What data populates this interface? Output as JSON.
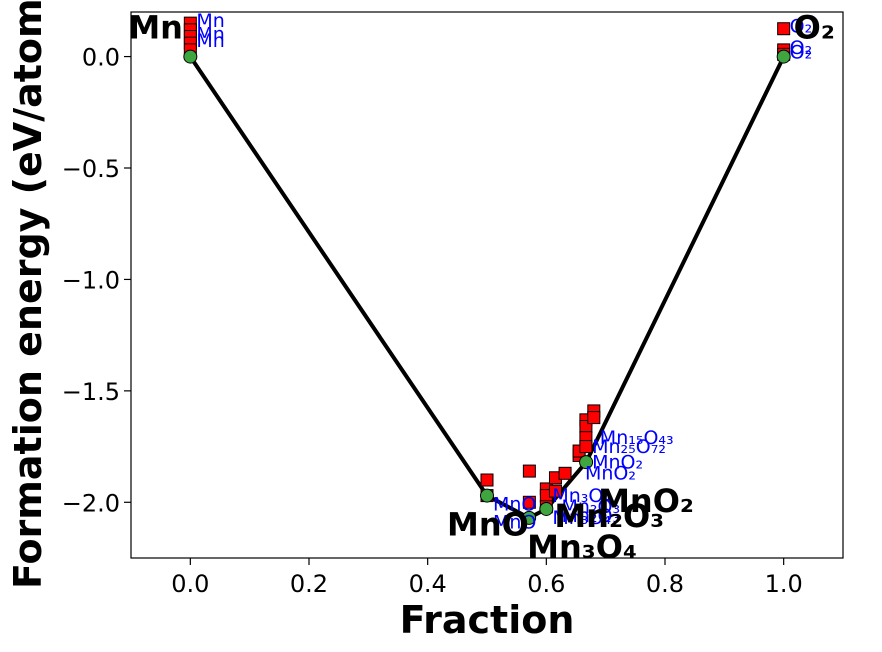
{
  "chart_data": {
    "type": "scatter",
    "xlabel": "Fraction",
    "ylabel": "Formation energy (eV/atom)",
    "xlim": [
      -0.1,
      1.1
    ],
    "ylim": [
      -2.25,
      0.2
    ],
    "xticks": [
      {
        "value": 0.0,
        "label": "0.0"
      },
      {
        "value": 0.2,
        "label": "0.2"
      },
      {
        "value": 0.4,
        "label": "0.4"
      },
      {
        "value": 0.6,
        "label": "0.6"
      },
      {
        "value": 0.8,
        "label": "0.8"
      },
      {
        "value": 1.0,
        "label": "1.0"
      }
    ],
    "yticks": [
      {
        "value": 0.0,
        "label": "0.0"
      },
      {
        "value": -0.5,
        "label": "−0.5"
      },
      {
        "value": -1.0,
        "label": "−1.0"
      },
      {
        "value": -1.5,
        "label": "−1.5"
      },
      {
        "value": -2.0,
        "label": "−2.0"
      }
    ],
    "grid": false,
    "hull": {
      "color": "#000000",
      "points": [
        {
          "x": 0.0,
          "y": 0.0
        },
        {
          "x": 0.5,
          "y": -1.97
        },
        {
          "x": 0.571,
          "y": -2.07
        },
        {
          "x": 0.6,
          "y": -2.03
        },
        {
          "x": 0.667,
          "y": -1.82
        },
        {
          "x": 1.0,
          "y": 0.0
        }
      ]
    },
    "stable": {
      "color": "#3fa63f",
      "points": [
        {
          "x": 0.0,
          "y": 0.0
        },
        {
          "x": 0.5,
          "y": -1.97
        },
        {
          "x": 0.571,
          "y": -2.07
        },
        {
          "x": 0.6,
          "y": -2.03
        },
        {
          "x": 0.667,
          "y": -1.82
        },
        {
          "x": 1.0,
          "y": 0.0
        }
      ]
    },
    "unstable": {
      "color": "#ff0000",
      "points": [
        {
          "x": 0.0,
          "y": 0.15
        },
        {
          "x": 0.0,
          "y": 0.12
        },
        {
          "x": 0.0,
          "y": 0.09
        },
        {
          "x": 0.0,
          "y": 0.06
        },
        {
          "x": 0.0,
          "y": 0.03
        },
        {
          "x": 1.0,
          "y": 0.125
        },
        {
          "x": 1.0,
          "y": 0.03
        },
        {
          "x": 1.0,
          "y": 0.01
        },
        {
          "x": 0.5,
          "y": -1.9
        },
        {
          "x": 0.5,
          "y": -1.97
        },
        {
          "x": 0.5714,
          "y": -1.86
        },
        {
          "x": 0.5714,
          "y": -2.0
        },
        {
          "x": 0.6,
          "y": -1.94
        },
        {
          "x": 0.6,
          "y": -1.97
        },
        {
          "x": 0.6,
          "y": -2.02
        },
        {
          "x": 0.6154,
          "y": -1.89
        },
        {
          "x": 0.6154,
          "y": -1.95
        },
        {
          "x": 0.6316,
          "y": -1.87
        },
        {
          "x": 0.6552,
          "y": -1.79
        },
        {
          "x": 0.6552,
          "y": -1.77
        },
        {
          "x": 0.6667,
          "y": -1.63
        },
        {
          "x": 0.6667,
          "y": -1.66
        },
        {
          "x": 0.6667,
          "y": -1.71
        },
        {
          "x": 0.6667,
          "y": -1.75
        },
        {
          "x": 0.68,
          "y": -1.59
        },
        {
          "x": 0.68,
          "y": -1.62
        }
      ]
    },
    "stable_labels": [
      {
        "html": "Mn",
        "x": 0.0,
        "y": 0.0,
        "dx": -62,
        "dy": -18
      },
      {
        "html": "O₂",
        "x": 1.0,
        "y": 0.0,
        "dx": 10,
        "dy": -18
      },
      {
        "html": "MnO",
        "x": 0.5,
        "y": -1.97,
        "dx": -40,
        "dy": 40
      },
      {
        "html": "Mn₃O₄",
        "x": 0.571,
        "y": -2.07,
        "dx": -2,
        "dy": 40
      },
      {
        "html": "Mn₂O₃",
        "x": 0.6,
        "y": -2.03,
        "dx": 8,
        "dy": 18
      },
      {
        "html": "MnO₂",
        "x": 0.667,
        "y": -1.82,
        "dx": 12,
        "dy": 50
      }
    ],
    "unstable_labels": [
      {
        "text": "Mn",
        "x": 0.0,
        "y": 0.15
      },
      {
        "text": "Mn",
        "x": 0.0,
        "y": 0.09
      },
      {
        "text": "Mn",
        "x": 0.0,
        "y": 0.06
      },
      {
        "text": "O₂",
        "x": 1.0,
        "y": 0.125
      },
      {
        "text": "O₂",
        "x": 1.0,
        "y": 0.03
      },
      {
        "text": "O₂",
        "x": 1.0,
        "y": 0.01
      },
      {
        "text": "Mn₁₅O₄₃",
        "x": 0.68,
        "y": -1.72
      },
      {
        "text": "Mn₂₅O₇₂",
        "x": 0.667,
        "y": -1.76
      },
      {
        "text": "MnO₂",
        "x": 0.667,
        "y": -1.83
      },
      {
        "text": "MnO₂",
        "x": 0.655,
        "y": -1.88
      },
      {
        "text": "Mn₃O₄",
        "x": 0.6,
        "y": -1.98
      },
      {
        "text": "Mn₃O₄",
        "x": 0.6,
        "y": -2.08
      },
      {
        "text": "MnO",
        "x": 0.5,
        "y": -2.02
      },
      {
        "text": "MnO",
        "x": 0.5,
        "y": -2.1
      },
      {
        "text": "Mn₂O₃",
        "x": 0.6154,
        "y": -2.03
      },
      {
        "text": "Mn₂O₃",
        "x": 0.6154,
        "y": -2.07
      }
    ]
  }
}
